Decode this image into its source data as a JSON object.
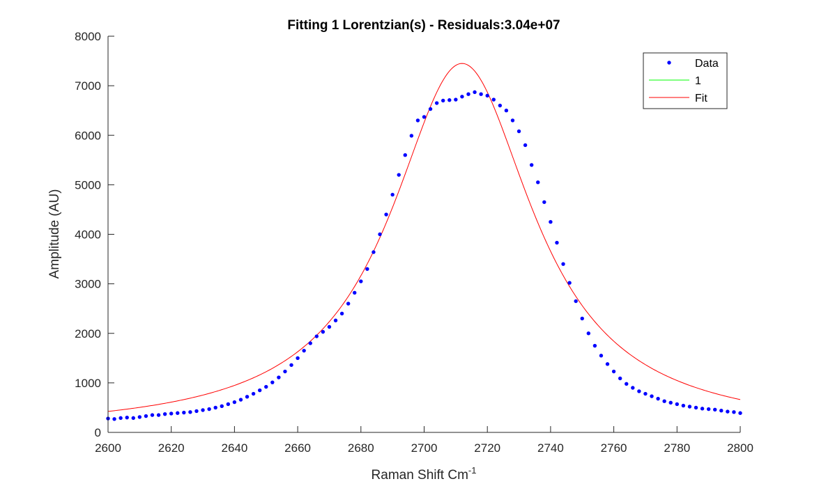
{
  "chart_data": {
    "type": "scatter",
    "title": "Fitting 1 Lorentzian(s) - Residuals:3.04e+07",
    "xlabel": "Raman Shift Cm",
    "xlabel_superscript": "-1",
    "ylabel": "Amplitude (AU)",
    "xlim": [
      2600,
      2800
    ],
    "ylim": [
      0,
      8000
    ],
    "xticks": [
      2600,
      2620,
      2640,
      2660,
      2680,
      2700,
      2720,
      2740,
      2760,
      2780,
      2800
    ],
    "yticks": [
      0,
      1000,
      2000,
      3000,
      4000,
      5000,
      6000,
      7000,
      8000
    ],
    "xtick_labels": [
      "2600",
      "2620",
      "2640",
      "2660",
      "2680",
      "2700",
      "2720",
      "2740",
      "2760",
      "2780",
      "2800"
    ],
    "ytick_labels": [
      "0",
      "1000",
      "2000",
      "3000",
      "4000",
      "5000",
      "6000",
      "7000",
      "8000"
    ],
    "grid": false,
    "legend_position": "top-right",
    "series": [
      {
        "name": "Data",
        "kind": "points",
        "color": "#0000ff",
        "x": [
          2600,
          2602,
          2604,
          2606,
          2608,
          2610,
          2612,
          2614,
          2616,
          2618,
          2620,
          2622,
          2624,
          2626,
          2628,
          2630,
          2632,
          2634,
          2636,
          2638,
          2640,
          2642,
          2644,
          2646,
          2648,
          2650,
          2652,
          2654,
          2656,
          2658,
          2660,
          2662,
          2664,
          2666,
          2668,
          2670,
          2672,
          2674,
          2676,
          2678,
          2680,
          2682,
          2684,
          2686,
          2688,
          2690,
          2692,
          2694,
          2696,
          2698,
          2700,
          2702,
          2704,
          2706,
          2708,
          2710,
          2712,
          2714,
          2716,
          2718,
          2720,
          2722,
          2724,
          2726,
          2728,
          2730,
          2732,
          2734,
          2736,
          2738,
          2740,
          2742,
          2744,
          2746,
          2748,
          2750,
          2752,
          2754,
          2756,
          2758,
          2760,
          2762,
          2764,
          2766,
          2768,
          2770,
          2772,
          2774,
          2776,
          2778,
          2780,
          2782,
          2784,
          2786,
          2788,
          2790,
          2792,
          2794,
          2796,
          2798,
          2800
        ],
        "y": [
          280,
          270,
          290,
          300,
          290,
          310,
          330,
          350,
          350,
          370,
          380,
          390,
          400,
          410,
          430,
          450,
          470,
          500,
          530,
          570,
          610,
          660,
          720,
          780,
          850,
          920,
          1010,
          1110,
          1230,
          1360,
          1500,
          1650,
          1800,
          1940,
          2030,
          2130,
          2260,
          2400,
          2600,
          2820,
          3050,
          3300,
          3640,
          4000,
          4400,
          4800,
          5200,
          5600,
          5990,
          6300,
          6370,
          6530,
          6650,
          6700,
          6710,
          6720,
          6780,
          6830,
          6870,
          6830,
          6800,
          6720,
          6600,
          6500,
          6300,
          6080,
          5800,
          5400,
          5050,
          4650,
          4250,
          3830,
          3400,
          3020,
          2650,
          2300,
          2000,
          1750,
          1550,
          1380,
          1230,
          1090,
          980,
          900,
          830,
          780,
          730,
          680,
          630,
          600,
          570,
          540,
          520,
          500,
          480,
          470,
          460,
          440,
          420,
          410,
          390
        ],
        "size": 2.7
      },
      {
        "name": "1",
        "kind": "line",
        "color": "#00ff00",
        "hidden_in_plot": true
      },
      {
        "name": "Fit",
        "kind": "lorentzian",
        "color": "#ff0000",
        "center": 2712,
        "hwhm": 27.5,
        "amplitude": 7450,
        "x_range": [
          2600,
          2800
        ]
      }
    ]
  }
}
